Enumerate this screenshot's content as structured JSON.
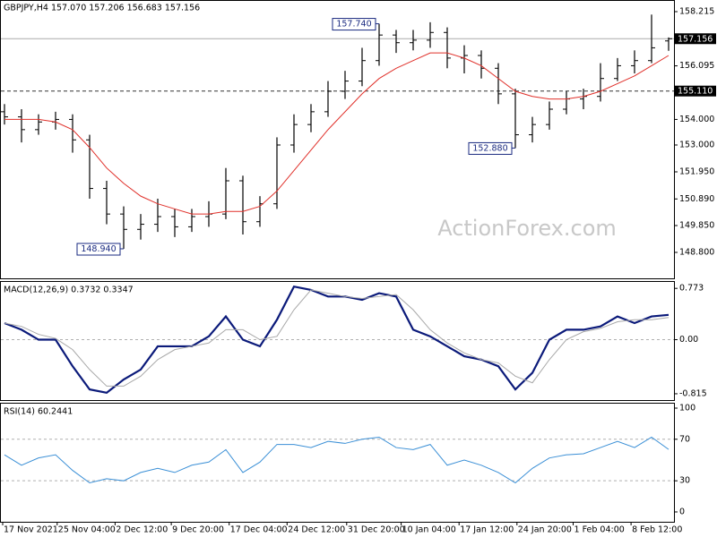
{
  "chart_data": [
    {
      "type": "ohlc",
      "title": "GBPJPY,H4  157.070 157.206 156.683 157.156",
      "color": "#000000",
      "open": [
        154.3,
        154.1,
        153.6,
        153.9,
        154.0,
        153.2,
        151.3,
        150.3,
        149.7,
        149.9,
        150.2,
        149.8,
        150.2,
        150.3,
        151.6,
        150.0,
        150.7,
        153.0,
        153.8,
        154.3,
        155.1,
        155.5,
        156.3,
        157.3,
        157.0,
        157.1,
        157.4,
        156.4,
        156.5,
        156.0,
        155.0,
        153.4,
        153.8,
        154.4,
        154.8,
        154.9,
        155.6,
        156.1,
        156.3,
        157.07
      ],
      "high": [
        154.6,
        154.4,
        154.2,
        154.3,
        154.2,
        153.4,
        151.6,
        150.6,
        150.3,
        150.9,
        150.5,
        150.5,
        150.8,
        152.1,
        151.8,
        151.0,
        153.3,
        154.2,
        154.6,
        155.5,
        155.9,
        156.8,
        157.74,
        157.5,
        157.5,
        157.8,
        157.6,
        156.9,
        156.7,
        156.2,
        155.2,
        154.1,
        154.7,
        155.1,
        155.2,
        156.2,
        156.4,
        156.7,
        158.1,
        157.206
      ],
      "low": [
        153.8,
        153.1,
        153.4,
        153.6,
        152.7,
        150.9,
        149.9,
        148.94,
        149.3,
        149.6,
        149.4,
        149.6,
        149.8,
        150.1,
        149.5,
        149.8,
        150.5,
        152.7,
        153.5,
        154.1,
        154.8,
        155.3,
        156.1,
        156.6,
        156.7,
        156.8,
        156.0,
        155.8,
        155.6,
        154.6,
        152.88,
        153.1,
        153.6,
        154.2,
        154.4,
        154.7,
        155.5,
        155.8,
        156.2,
        156.683
      ],
      "close": [
        154.1,
        153.6,
        153.9,
        154.0,
        153.2,
        151.3,
        150.3,
        149.7,
        149.9,
        150.2,
        149.8,
        150.2,
        150.3,
        151.6,
        150.0,
        150.7,
        153.0,
        153.8,
        154.3,
        155.1,
        155.5,
        156.3,
        157.3,
        157.0,
        157.1,
        157.4,
        156.4,
        156.5,
        156.0,
        155.0,
        153.4,
        153.8,
        154.4,
        154.8,
        154.9,
        155.6,
        156.1,
        156.3,
        156.8,
        157.156
      ],
      "overlay": {
        "color": "#e0302a",
        "values": [
          154.0,
          154.0,
          154.0,
          153.9,
          153.6,
          152.9,
          152.1,
          151.5,
          151.0,
          150.7,
          150.5,
          150.3,
          150.3,
          150.4,
          150.4,
          150.6,
          151.2,
          152.0,
          152.8,
          153.6,
          154.3,
          155.0,
          155.6,
          156.0,
          156.3,
          156.6,
          156.6,
          156.4,
          156.1,
          155.6,
          155.1,
          154.9,
          154.8,
          154.8,
          154.9,
          155.1,
          155.4,
          155.7,
          156.1,
          156.5
        ]
      },
      "ylim": [
        147.75,
        158.67
      ],
      "yticks": [
        158.215,
        156.095,
        {
          "value": 154,
          "label": "154.000"
        },
        {
          "value": 153,
          "label": "153.000"
        },
        {
          "value": 151.95,
          "label": "151.950"
        },
        {
          "value": 150.89,
          "label": "150.890"
        },
        {
          "value": 149.85,
          "label": "149.850"
        },
        {
          "value": 148.8,
          "label": "148.800"
        }
      ],
      "annotations": [
        {
          "value": 157.74,
          "label": "157.740"
        },
        {
          "value": 152.88,
          "label": "152.880"
        },
        {
          "value": 148.94,
          "label": "148.940"
        }
      ],
      "markers": [
        {
          "value": 157.156,
          "label": "157.156",
          "style": "solid"
        },
        {
          "value": 155.11,
          "label": "155.110",
          "style": "dashed"
        }
      ],
      "watermark": "ActionForex.com"
    },
    {
      "type": "line",
      "title": "MACD(12,26,9) 0.3732 0.3347",
      "series": [
        {
          "color": "#0b1a7a",
          "width": 2.2,
          "values": [
            0.25,
            0.15,
            0.0,
            0.0,
            -0.4,
            -0.75,
            -0.8,
            -0.6,
            -0.45,
            -0.1,
            -0.1,
            -0.1,
            0.05,
            0.35,
            0.0,
            -0.1,
            0.3,
            0.8,
            0.75,
            0.65,
            0.65,
            0.6,
            0.7,
            0.65,
            0.15,
            0.05,
            -0.1,
            -0.25,
            -0.3,
            -0.4,
            -0.75,
            -0.5,
            0.0,
            0.15,
            0.15,
            0.2,
            0.35,
            0.25,
            0.35,
            0.3732
          ]
        },
        {
          "color": "#a8a8a8",
          "width": 1,
          "values": [
            0.25,
            0.2,
            0.08,
            0.02,
            -0.15,
            -0.45,
            -0.7,
            -0.7,
            -0.55,
            -0.3,
            -0.15,
            -0.1,
            -0.05,
            0.15,
            0.15,
            0.0,
            0.05,
            0.45,
            0.75,
            0.7,
            0.65,
            0.62,
            0.65,
            0.68,
            0.45,
            0.15,
            -0.05,
            -0.2,
            -0.3,
            -0.35,
            -0.55,
            -0.65,
            -0.3,
            0.0,
            0.12,
            0.17,
            0.27,
            0.3,
            0.3,
            0.3347
          ]
        }
      ],
      "ylim": [
        -0.91,
        0.87
      ],
      "yticks": [
        0.773,
        {
          "value": 0,
          "label": "0.00"
        },
        -0.815
      ],
      "levels": [
        0
      ]
    },
    {
      "type": "line",
      "title": "RSI(14) 60.2441",
      "series": [
        {
          "color": "#3a8fd6",
          "width": 1,
          "values": [
            55,
            45,
            52,
            55,
            40,
            28,
            32,
            30,
            38,
            42,
            38,
            45,
            48,
            60,
            38,
            48,
            65,
            65,
            62,
            68,
            66,
            70,
            72,
            62,
            60,
            65,
            45,
            50,
            45,
            38,
            28,
            42,
            52,
            55,
            56,
            62,
            68,
            62,
            72,
            60.2441
          ]
        }
      ],
      "ylim": [
        -9.5,
        104.3
      ],
      "yticks": [
        100,
        70,
        30,
        0
      ],
      "levels": [
        70,
        30
      ],
      "xticks": [
        {
          "value": 0,
          "label": "17 Nov 2021"
        },
        {
          "value": 3.2,
          "label": "25 Nov 04:00"
        },
        {
          "value": 6.6,
          "label": "2 Dec 12:00"
        },
        {
          "value": 9.9,
          "label": "9 Dec 20:00"
        },
        {
          "value": 13.3,
          "label": "17 Dec 04:00"
        },
        {
          "value": 16.7,
          "label": "24 Dec 12:00"
        },
        {
          "value": 20.2,
          "label": "31 Dec 20:00"
        },
        {
          "value": 23.4,
          "label": "10 Jan 04:00"
        },
        {
          "value": 26.8,
          "label": "17 Jan 12:00"
        },
        {
          "value": 30.2,
          "label": "24 Jan 20:00"
        },
        {
          "value": 33.5,
          "label": "1 Feb 04:00"
        },
        {
          "value": 36.9,
          "label": "8 Feb 12:00"
        }
      ]
    }
  ]
}
